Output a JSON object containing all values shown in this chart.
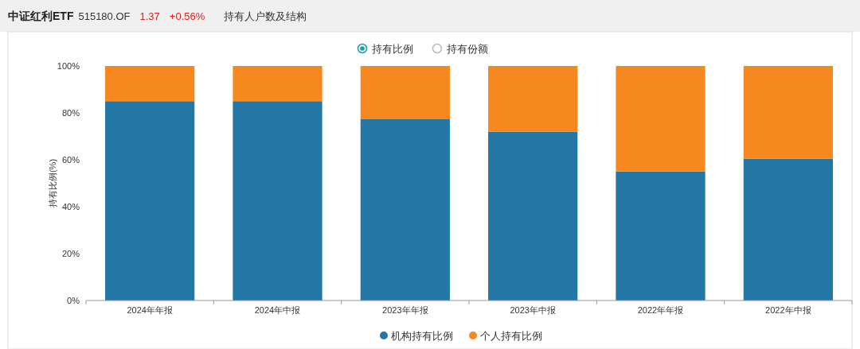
{
  "chart_data": {
    "type": "bar",
    "title": "中证红利ETF",
    "subtitle": "持有人户数及结构",
    "annotations": [
      "515180.OF",
      "1.37",
      "+0.56%",
      "持有比例",
      "持有份额"
    ],
    "ylabel": "持有比例(%)",
    "categories": [
      "2024年年报",
      "2024年中报",
      "2023年年报",
      "2023年中报",
      "2022年年报",
      "2022年中报"
    ],
    "stacked": true,
    "series": [
      {
        "name": "机构持有比例",
        "color": "#2277a4",
        "values": [
          85,
          85,
          77.5,
          72,
          55,
          60.5
        ]
      },
      {
        "name": "个人持有比例",
        "color": "#f5891f",
        "values": [
          15,
          15,
          22.5,
          28,
          45,
          39.5
        ]
      }
    ],
    "ylim": [
      0,
      100
    ],
    "yticks": [
      {
        "value": 0,
        "label": "0%"
      },
      {
        "value": 20,
        "label": "20%"
      },
      {
        "value": 40,
        "label": "40%"
      },
      {
        "value": 60,
        "label": "60%"
      },
      {
        "value": 80,
        "label": "80%"
      },
      {
        "value": 100,
        "label": "100%"
      }
    ],
    "grid": false,
    "legend": "bottom"
  }
}
